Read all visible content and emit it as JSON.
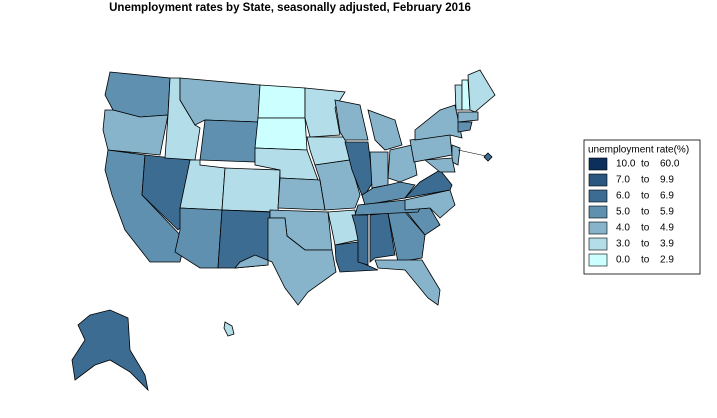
{
  "title": "Unemployment rates by State, seasonally adjusted,  February  2016",
  "legend": {
    "title": "unemployment rate(%)",
    "separator": "to",
    "items": [
      {
        "low": "10.0",
        "high": "60.0",
        "color": "#0d2f5c"
      },
      {
        "low": "7.0",
        "high": "9.9",
        "color": "#2a5680"
      },
      {
        "low": "6.0",
        "high": "6.9",
        "color": "#3d6c92"
      },
      {
        "low": "5.0",
        "high": "5.9",
        "color": "#5f90b0"
      },
      {
        "low": "4.0",
        "high": "4.9",
        "color": "#87b4cb"
      },
      {
        "low": "3.0",
        "high": "3.9",
        "color": "#b3dde8"
      },
      {
        "low": "0.0",
        "high": "2.9",
        "color": "#ccffff"
      }
    ]
  },
  "map": {
    "regions": [
      3,
      4,
      3,
      2,
      5,
      4,
      3,
      5,
      5,
      3,
      2,
      6,
      6,
      5,
      4,
      4,
      4,
      5,
      5,
      4,
      5,
      2,
      4,
      2,
      4,
      4,
      3,
      4,
      2,
      2,
      3,
      4,
      3,
      3,
      4,
      2,
      4,
      4,
      4,
      4,
      5,
      6,
      5,
      4,
      3,
      2,
      2,
      5
    ]
  }
}
